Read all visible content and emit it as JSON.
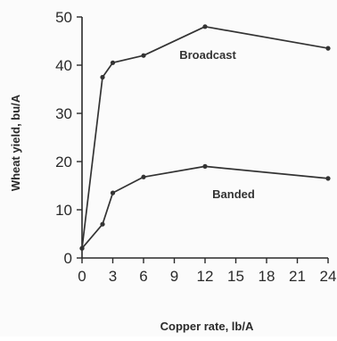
{
  "chart_data": {
    "type": "line",
    "title": "",
    "xlabel": "Copper rate, lb/A",
    "ylabel": "Wheat yield, bu/A",
    "xlim": [
      0,
      24
    ],
    "ylim": [
      0,
      50
    ],
    "x_ticks": [
      0,
      3,
      6,
      9,
      12,
      15,
      18,
      21,
      24
    ],
    "y_ticks": [
      0,
      10,
      20,
      30,
      40,
      50
    ],
    "grid": false,
    "legend": "none",
    "series": [
      {
        "name": "Broadcast",
        "x": [
          0,
          2,
          3,
          6,
          12,
          24
        ],
        "y": [
          2,
          37.5,
          40.5,
          42,
          48,
          43.5
        ],
        "color": "#333333"
      },
      {
        "name": "Banded",
        "x": [
          0,
          2,
          3,
          6,
          12,
          24
        ],
        "y": [
          2,
          7,
          13.5,
          16.8,
          19,
          16.5
        ],
        "color": "#333333"
      }
    ]
  }
}
